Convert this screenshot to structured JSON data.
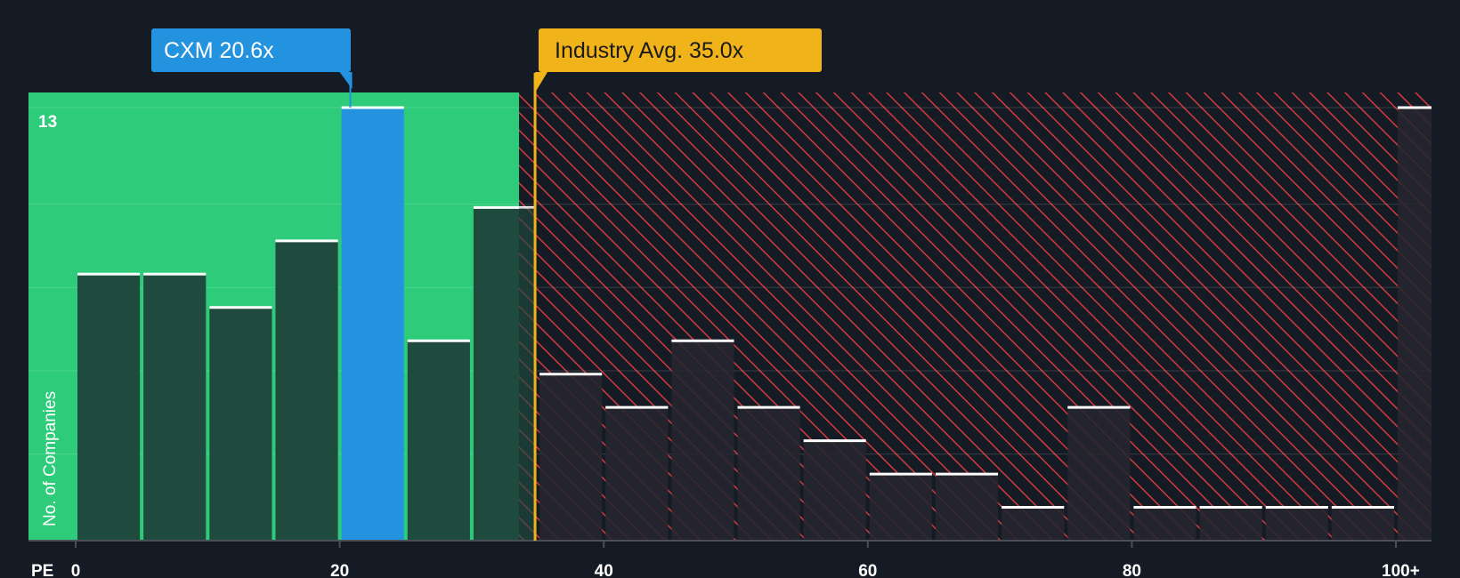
{
  "chart_data": {
    "type": "bar",
    "x_axis_label": "PE",
    "y_axis_label": "No. of Companies",
    "y_max_label": "13",
    "x_ticks": [
      {
        "value": 0,
        "label": "0"
      },
      {
        "value": 20,
        "label": "20"
      },
      {
        "value": 40,
        "label": "40"
      },
      {
        "value": 60,
        "label": "60"
      },
      {
        "value": 80,
        "label": "80"
      },
      {
        "value": 100,
        "label": "100+"
      }
    ],
    "bin_width": 5,
    "bins": [
      {
        "x0": 0,
        "count": 8
      },
      {
        "x0": 5,
        "count": 8
      },
      {
        "x0": 10,
        "count": 7
      },
      {
        "x0": 15,
        "count": 9
      },
      {
        "x0": 20,
        "count": 13,
        "highlight": true
      },
      {
        "x0": 25,
        "count": 6
      },
      {
        "x0": 30,
        "count": 10
      },
      {
        "x0": 35,
        "count": 5
      },
      {
        "x0": 40,
        "count": 4
      },
      {
        "x0": 45,
        "count": 6
      },
      {
        "x0": 50,
        "count": 4
      },
      {
        "x0": 55,
        "count": 3
      },
      {
        "x0": 60,
        "count": 2
      },
      {
        "x0": 65,
        "count": 2
      },
      {
        "x0": 70,
        "count": 1
      },
      {
        "x0": 75,
        "count": 4
      },
      {
        "x0": 80,
        "count": 1
      },
      {
        "x0": 85,
        "count": 1
      },
      {
        "x0": 90,
        "count": 1
      },
      {
        "x0": 95,
        "count": 1
      },
      {
        "x0": 100,
        "count": 13
      }
    ],
    "ylim": [
      0,
      13.5
    ],
    "company": {
      "ticker": "CXM",
      "pe_label": "CXM 20.6x",
      "pe": 20.6
    },
    "industry": {
      "label": "Industry Avg. 35.0x",
      "pe": 35.0
    },
    "colors": {
      "background": "#151b24",
      "fair_zone": "#2ecc7a",
      "bar_fair": "#1f4a3e",
      "bar_highlight": "#2393e0",
      "bar_over": "#26262f",
      "hatch_line": "#d13a3f",
      "cap_line": "#ffffff",
      "company_callout": "#2393e0",
      "industry_callout": "#f0b31a"
    }
  }
}
